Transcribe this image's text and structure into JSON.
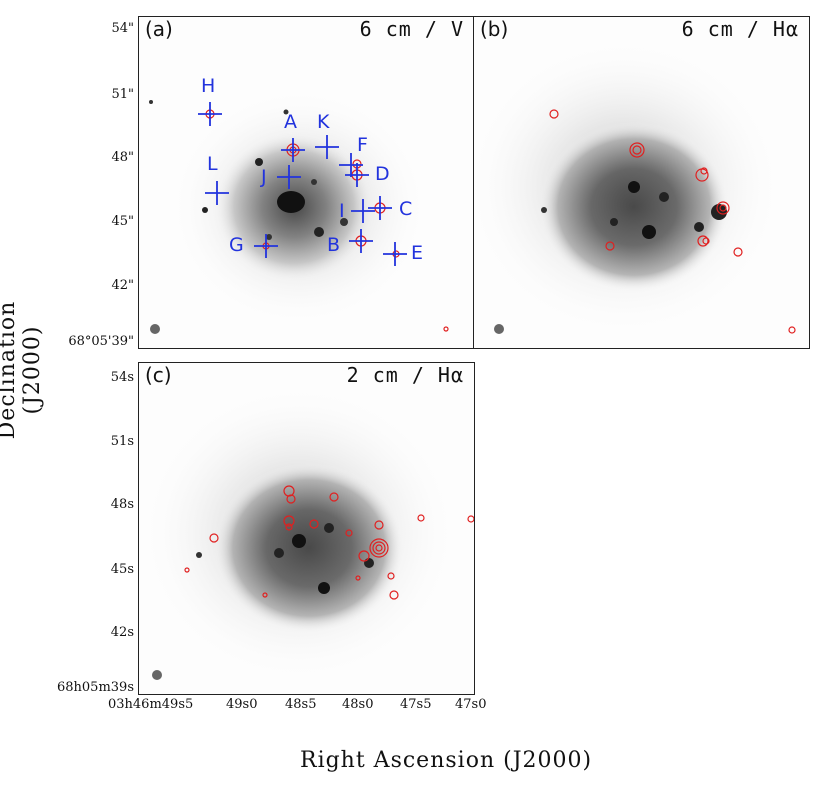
{
  "figure": {
    "y_axis_title": "Declination (J2000)",
    "x_axis_title": "Right Ascension (J2000)",
    "panels": [
      {
        "id": "a",
        "label": "(a)",
        "title": "6 cm / V"
      },
      {
        "id": "b",
        "label": "(b)",
        "title": "6 cm / Hα"
      },
      {
        "id": "c",
        "label": "(c)",
        "title": "2 cm / Hα"
      }
    ],
    "top_dec_ticks": [
      "54\"",
      "51\"",
      "48\"",
      "45\"",
      "42\"",
      "68°05'39\""
    ],
    "bottom_dec_ticks": [
      "54s",
      "51s",
      "48s",
      "45s",
      "42s",
      "68h05m39s"
    ],
    "ra_ticks": [
      "03h46m49s5",
      "49s0",
      "48s5",
      "48s0",
      "47s5",
      "47s0"
    ],
    "sources": [
      {
        "name": "A"
      },
      {
        "name": "B"
      },
      {
        "name": "C"
      },
      {
        "name": "D"
      },
      {
        "name": "E"
      },
      {
        "name": "F"
      },
      {
        "name": "G"
      },
      {
        "name": "H"
      },
      {
        "name": "I"
      },
      {
        "name": "J"
      },
      {
        "name": "K"
      },
      {
        "name": "L"
      }
    ]
  },
  "colors": {
    "marker": "#2233dd",
    "contour": "#e02020",
    "frame": "#222222"
  }
}
